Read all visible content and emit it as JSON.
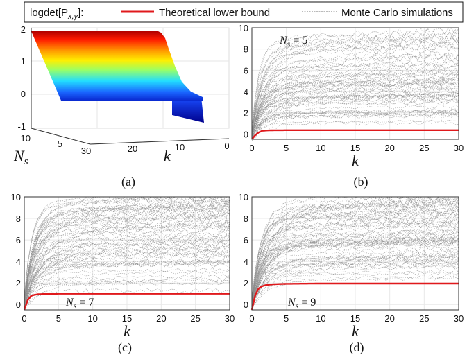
{
  "legend": {
    "title": "logdet[P",
    "title_sub": "x,y",
    "title_end": "]:",
    "lower_bound_label": "Theoretical lower bound",
    "mc_label": "Monte Carlo simulations",
    "lower_bound_color": "#e0191c",
    "mc_color": "#8c8c8c"
  },
  "chart_data": [
    {
      "panel": "a",
      "type": "surface",
      "caption": "(a)",
      "xlabel": "k",
      "ylabel_main": "N",
      "ylabel_sub": "s",
      "z_ticks": [
        "2",
        "1",
        "0",
        "-1"
      ],
      "k_ticks": [
        "30",
        "20",
        "10",
        "0"
      ],
      "ns_ticks": [
        "10",
        "5"
      ],
      "zlim": [
        -1,
        2
      ],
      "colormap": "jet"
    },
    {
      "panel": "b",
      "type": "line",
      "caption": "(b)",
      "xlabel": "k",
      "annotation_main": "N",
      "annotation_sub": "s",
      "annotation_value": "= 5",
      "xlim": [
        0,
        30
      ],
      "ylim": [
        -0.5,
        10
      ],
      "x_ticks": [
        "0",
        "5",
        "10",
        "15",
        "20",
        "25",
        "30"
      ],
      "y_ticks": [
        "0",
        "2",
        "4",
        "6",
        "8",
        "10"
      ],
      "lower_bound": {
        "x": [
          0,
          0.5,
          1,
          1.5,
          2,
          3,
          5,
          10,
          30
        ],
        "y": [
          -0.5,
          -0.1,
          0.15,
          0.3,
          0.33,
          0.35,
          0.36,
          0.36,
          0.36
        ]
      },
      "mc_range": [
        0.6,
        9.0
      ]
    },
    {
      "panel": "c",
      "type": "line",
      "caption": "(c)",
      "xlabel": "k",
      "annotation_main": "N",
      "annotation_sub": "s",
      "annotation_value": "= 7",
      "xlim": [
        0,
        30
      ],
      "ylim": [
        -0.5,
        10
      ],
      "x_ticks": [
        "0",
        "5",
        "10",
        "15",
        "20",
        "25",
        "30"
      ],
      "y_ticks": [
        "0",
        "2",
        "4",
        "6",
        "8",
        "10"
      ],
      "lower_bound": {
        "x": [
          0,
          0.5,
          1,
          1.5,
          2,
          3,
          5,
          10,
          30
        ],
        "y": [
          -0.5,
          0.4,
          0.8,
          0.9,
          0.95,
          0.98,
          1.0,
          1.0,
          1.0
        ]
      },
      "mc_range": [
        1.2,
        9.8
      ]
    },
    {
      "panel": "d",
      "type": "line",
      "caption": "(d)",
      "xlabel": "k",
      "annotation_main": "N",
      "annotation_sub": "s",
      "annotation_value": "= 9",
      "xlim": [
        0,
        30
      ],
      "ylim": [
        -0.5,
        10
      ],
      "x_ticks": [
        "0",
        "5",
        "10",
        "15",
        "20",
        "25",
        "30"
      ],
      "y_ticks": [
        "0",
        "2",
        "4",
        "6",
        "8",
        "10"
      ],
      "lower_bound": {
        "x": [
          0,
          0.5,
          1,
          1.5,
          2,
          3,
          5,
          10,
          30
        ],
        "y": [
          -0.5,
          0.9,
          1.5,
          1.7,
          1.8,
          1.88,
          1.92,
          1.95,
          1.95
        ]
      },
      "mc_range": [
        2.1,
        9.8
      ]
    }
  ]
}
